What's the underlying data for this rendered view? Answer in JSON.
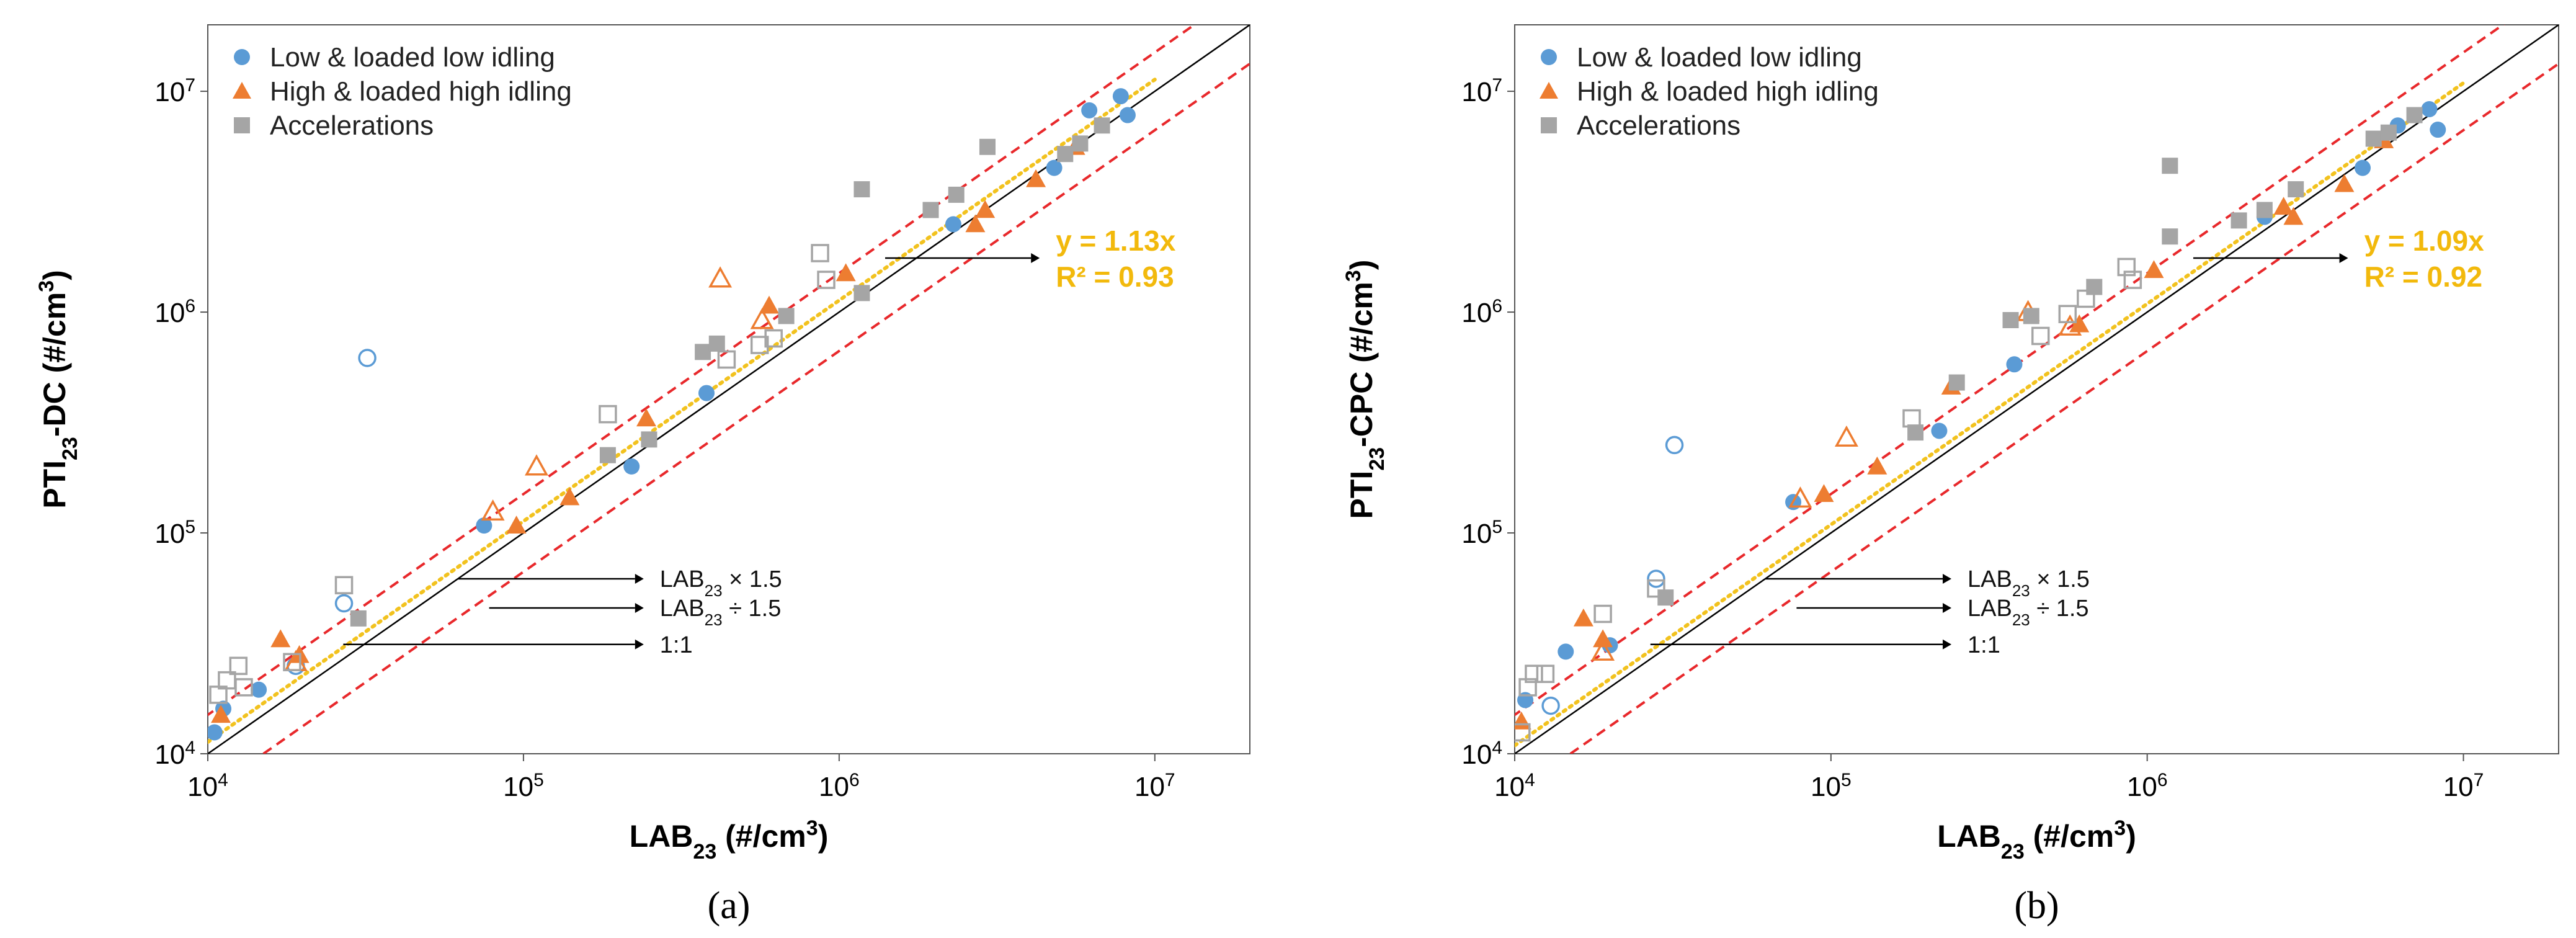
{
  "colors": {
    "low": "#5b9bd5",
    "high": "#ed7d31",
    "acc": "#a5a5a5",
    "fit": "#f2c21e",
    "band": "#e8282b",
    "one_to_one": "#000000"
  },
  "legend": [
    {
      "label": "Low & loaded low idling",
      "series": "low",
      "marker": "circle"
    },
    {
      "label": "High & loaded high idling",
      "series": "high",
      "marker": "triangle"
    },
    {
      "label": "Accelerations",
      "series": "acc",
      "marker": "square"
    }
  ],
  "annotations": {
    "upper": {
      "base": "LAB",
      "sub": "23",
      "rest": " × 1.5"
    },
    "lower": {
      "base": "LAB",
      "sub": "23",
      "rest": " ÷ 1.5"
    },
    "one": "1:1"
  },
  "axis_tick_mantissa": "10",
  "chart_data": [
    {
      "type": "scatter",
      "panel_label": "(a)",
      "xscale": "log",
      "yscale": "log",
      "xlim": [
        10000,
        20000000
      ],
      "ylim": [
        10000,
        20000000
      ],
      "x_ticks": [
        4,
        5,
        6,
        7
      ],
      "y_ticks": [
        4,
        5,
        6,
        7
      ],
      "xlabel": {
        "base": "LAB",
        "sub": "23",
        "rest": " (#/cm",
        "sup": "3",
        "end": ")"
      },
      "ylabel": {
        "base": "PTI",
        "sub": "23",
        "rest": "-DC (#/cm",
        "sup": "3",
        "end": ")"
      },
      "fit": {
        "slope": 1.13,
        "equation": "y = 1.13x",
        "r2": "R² = 0.93"
      },
      "bands": {
        "upper": 1.5,
        "lower": 0.6667
      },
      "series": [
        {
          "name": "Low & loaded low idling",
          "key": "low",
          "points": [
            [
              10500,
              12500,
              1
            ],
            [
              11200,
              16000,
              1
            ],
            [
              14500,
              19500,
              1
            ],
            [
              75000,
              108000,
              1
            ],
            [
              220000,
              200000,
              1
            ],
            [
              380000,
              430000,
              1
            ],
            [
              2300000,
              2500000,
              1
            ],
            [
              4800000,
              4500000,
              1
            ],
            [
              6200000,
              8200000,
              1
            ],
            [
              7800000,
              9500000,
              1
            ],
            [
              8200000,
              7800000,
              1
            ],
            [
              32000,
              620000,
              0
            ],
            [
              27000,
              48000,
              0
            ],
            [
              19000,
              25000,
              0
            ]
          ]
        },
        {
          "name": "High & loaded high idling",
          "key": "high",
          "points": [
            [
              11000,
              15000,
              1
            ],
            [
              17000,
              33000,
              1
            ],
            [
              19500,
              28000,
              1
            ],
            [
              95000,
              108000,
              1
            ],
            [
              140000,
              145000,
              1
            ],
            [
              245000,
              330000,
              1
            ],
            [
              600000,
              1070000,
              1
            ],
            [
              1050000,
              1500000,
              1
            ],
            [
              2700000,
              2500000,
              1
            ],
            [
              2900000,
              2900000,
              1
            ],
            [
              4200000,
              4000000,
              1
            ],
            [
              5600000,
              5600000,
              1
            ],
            [
              80000,
              125000,
              0
            ],
            [
              110000,
              200000,
              0
            ],
            [
              420000,
              1420000,
              0
            ],
            [
              19000,
              26000,
              0
            ],
            [
              570000,
              920000,
              0
            ]
          ]
        },
        {
          "name": "Accelerations",
          "key": "acc",
          "points": [
            [
              30000,
              41000,
              1
            ],
            [
              185000,
              225000,
              1
            ],
            [
              250000,
              265000,
              1
            ],
            [
              370000,
              660000,
              1
            ],
            [
              410000,
              720000,
              1
            ],
            [
              680000,
              960000,
              1
            ],
            [
              1180000,
              1220000,
              1
            ],
            [
              1180000,
              3600000,
              1
            ],
            [
              1950000,
              2900000,
              1
            ],
            [
              2350000,
              3400000,
              1
            ],
            [
              2950000,
              5600000,
              1
            ],
            [
              5200000,
              5200000,
              1
            ],
            [
              5800000,
              5800000,
              1
            ],
            [
              6800000,
              7000000,
              1
            ],
            [
              10800,
              18500,
              0
            ],
            [
              11500,
              21500,
              0
            ],
            [
              12500,
              25000,
              0
            ],
            [
              13000,
              20000,
              0
            ],
            [
              18500,
              26000,
              0
            ],
            [
              27000,
              58000,
              0
            ],
            [
              185000,
              345000,
              0
            ],
            [
              440000,
              610000,
              0
            ],
            [
              560000,
              710000,
              0
            ],
            [
              620000,
              760000,
              0
            ],
            [
              870000,
              1850000,
              0
            ],
            [
              910000,
              1400000,
              0
            ]
          ]
        }
      ]
    },
    {
      "type": "scatter",
      "panel_label": "(b)",
      "xscale": "log",
      "yscale": "log",
      "xlim": [
        10000,
        20000000
      ],
      "ylim": [
        10000,
        20000000
      ],
      "x_ticks": [
        4,
        5,
        6,
        7
      ],
      "y_ticks": [
        4,
        5,
        6,
        7
      ],
      "xlabel": {
        "base": "LAB",
        "sub": "23",
        "rest": " (#/cm",
        "sup": "3",
        "end": ")"
      },
      "ylabel": {
        "base": "PTI",
        "sub": "23",
        "rest": "-CPC (#/cm",
        "sup": "3",
        "end": ")"
      },
      "fit": {
        "slope": 1.09,
        "equation": "y = 1.09x",
        "r2": "R² = 0.92"
      },
      "bands": {
        "upper": 1.5,
        "lower": 0.6667
      },
      "series": [
        {
          "name": "Low & loaded low idling",
          "key": "low",
          "points": [
            [
              10800,
              17500,
              1
            ],
            [
              14500,
              29000,
              1
            ],
            [
              20000,
              31000,
              1
            ],
            [
              76000,
              138000,
              1
            ],
            [
              220000,
              290000,
              1
            ],
            [
              380000,
              580000,
              1
            ],
            [
              2350000,
              2700000,
              1
            ],
            [
              4800000,
              4500000,
              1
            ],
            [
              6200000,
              7000000,
              1
            ],
            [
              7800000,
              8300000,
              1
            ],
            [
              8300000,
              6700000,
              1
            ],
            [
              32000,
              250000,
              0
            ],
            [
              28000,
              62000,
              0
            ],
            [
              13000,
              16500,
              0
            ]
          ]
        },
        {
          "name": "High & loaded high idling",
          "key": "high",
          "points": [
            [
              10500,
              14000,
              1
            ],
            [
              16500,
              41000,
              1
            ],
            [
              19000,
              33000,
              1
            ],
            [
              95000,
              150000,
              1
            ],
            [
              140000,
              200000,
              1
            ],
            [
              240000,
              460000,
              1
            ],
            [
              610000,
              880000,
              1
            ],
            [
              1050000,
              1550000,
              1
            ],
            [
              2700000,
              3000000,
              1
            ],
            [
              2900000,
              2700000,
              1
            ],
            [
              4200000,
              3800000,
              1
            ],
            [
              5600000,
              6000000,
              1
            ],
            [
              80000,
              143000,
              0
            ],
            [
              112000,
              270000,
              0
            ],
            [
              420000,
              1000000,
              0
            ],
            [
              19000,
              29000,
              0
            ],
            [
              570000,
              860000,
              0
            ]
          ]
        },
        {
          "name": "Accelerations",
          "key": "acc",
          "points": [
            [
              30000,
              51000,
              1
            ],
            [
              185000,
              285000,
              1
            ],
            [
              250000,
              480000,
              1
            ],
            [
              370000,
              920000,
              1
            ],
            [
              430000,
              960000,
              1
            ],
            [
              680000,
              1300000,
              1
            ],
            [
              1180000,
              2200000,
              1
            ],
            [
              1180000,
              4600000,
              1
            ],
            [
              1950000,
              2600000,
              1
            ],
            [
              2350000,
              2900000,
              1
            ],
            [
              2950000,
              3600000,
              1
            ],
            [
              5200000,
              6100000,
              1
            ],
            [
              5800000,
              6500000,
              1
            ],
            [
              7000000,
              7800000,
              1
            ],
            [
              10500,
              12500,
              0
            ],
            [
              11000,
              20000,
              0
            ],
            [
              11500,
              23000,
              0
            ],
            [
              12500,
              23000,
              0
            ],
            [
              19000,
              43000,
              0
            ],
            [
              28000,
              56000,
              0
            ],
            [
              180000,
              330000,
              0
            ],
            [
              460000,
              780000,
              0
            ],
            [
              560000,
              980000,
              0
            ],
            [
              640000,
              1150000,
              0
            ],
            [
              860000,
              1600000,
              0
            ],
            [
              900000,
              1400000,
              0
            ]
          ]
        }
      ]
    }
  ]
}
